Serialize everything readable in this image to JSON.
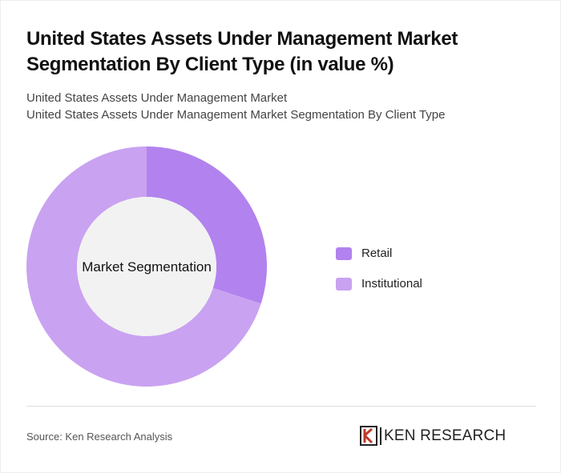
{
  "chart_data": {
    "type": "pie",
    "title": "United States Assets Under Management Market Segmentation By Client Type (in value %)",
    "subtitle": [
      "United States Assets Under Management Market",
      "United States Assets Under Management Market Segmentation By Client Type"
    ],
    "center_label": "Market Segmentation",
    "categories": [
      "Retail",
      "Institutional"
    ],
    "values": [
      30,
      70
    ],
    "colors": [
      "#b282ee",
      "#c9a2f1"
    ],
    "source": "Source: Ken Research Analysis",
    "logo": "KEN RESEARCH"
  }
}
